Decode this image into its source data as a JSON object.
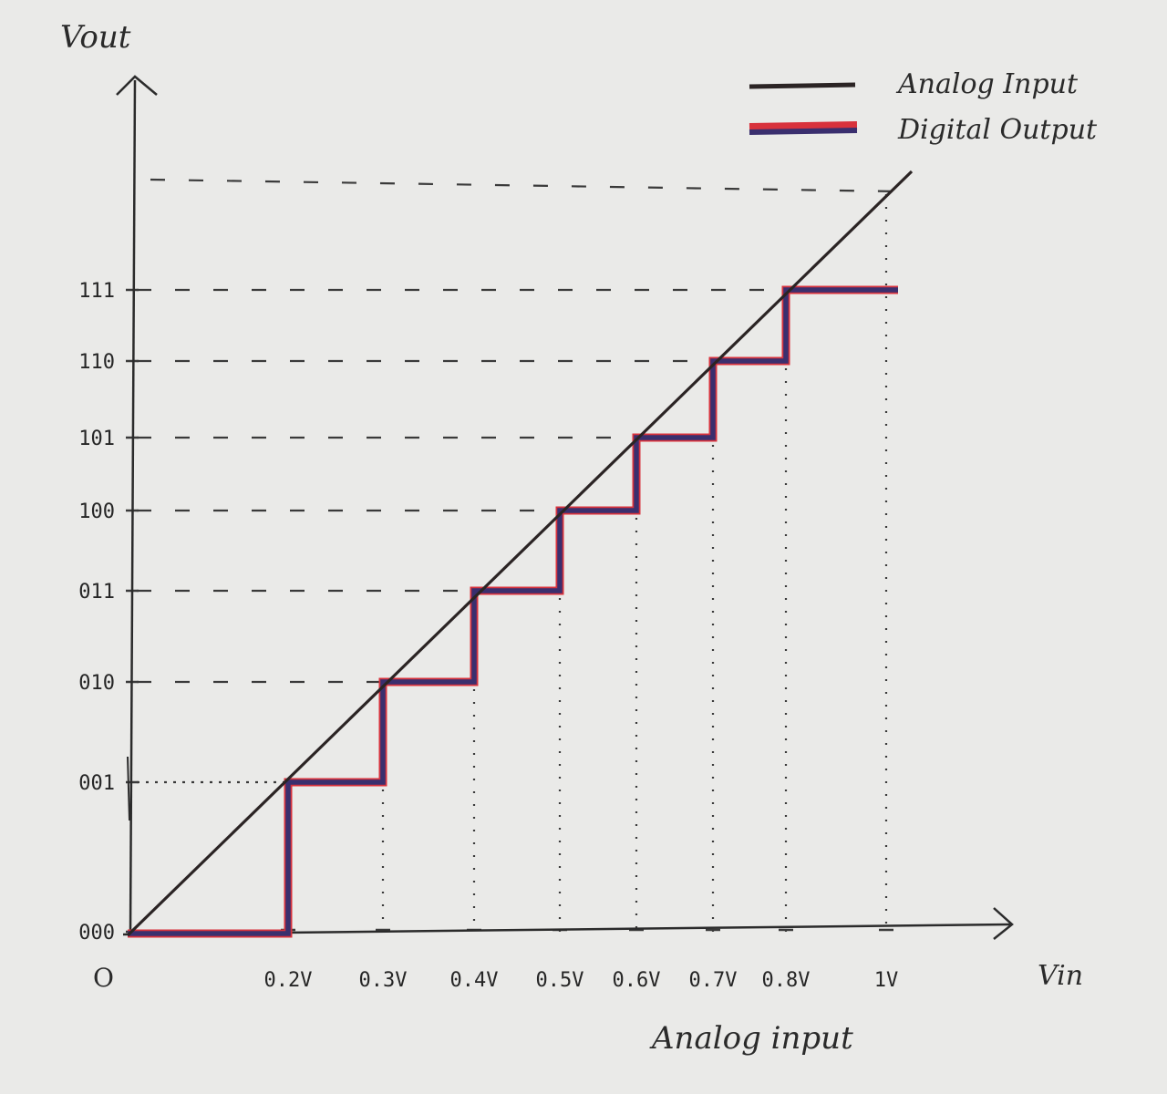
{
  "chart_data": {
    "type": "line",
    "xlabel": "Analog input",
    "x_axis_name": "Vin",
    "y_axis_name": "Vout",
    "origin_label": "O",
    "x_tick_labels": [
      "0.2V",
      "0.3V",
      "0.4V",
      "0.5V",
      "0.6V",
      "0.7V",
      "0.8V",
      "1V"
    ],
    "y_tick_labels": [
      "000",
      "001",
      "010",
      "011",
      "100",
      "101",
      "110",
      "111"
    ],
    "series": [
      {
        "name": "Analog Input",
        "color": "#2b2424",
        "style": "straight diagonal line from origin"
      },
      {
        "name": "Digital Output",
        "color": "#3a2f6e",
        "edge_color": "#d8323c",
        "style": "staircase",
        "steps": [
          {
            "x": "0.2V",
            "code": "001"
          },
          {
            "x": "0.3V",
            "code": "010"
          },
          {
            "x": "0.4V",
            "code": "011"
          },
          {
            "x": "0.5V",
            "code": "100"
          },
          {
            "x": "0.6V",
            "code": "101"
          },
          {
            "x": "0.7V",
            "code": "110"
          },
          {
            "x": "0.8V",
            "code": "111"
          }
        ]
      }
    ],
    "legend_position": "top-right",
    "grid": "dashed guide lines"
  }
}
